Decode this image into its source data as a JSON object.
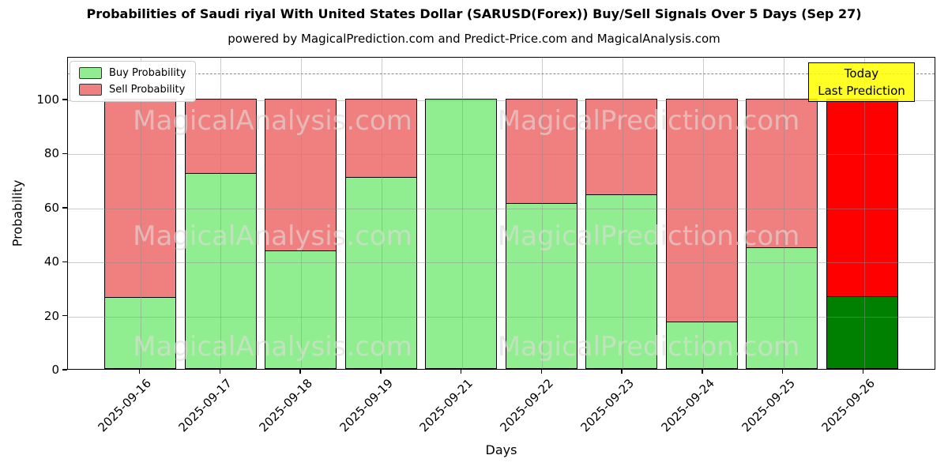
{
  "chart_data": {
    "type": "bar",
    "stacked": true,
    "title": "Probabilities of Saudi riyal With United States Dollar (SARUSD(Forex)) Buy/Sell Signals Over 5 Days (Sep 27)",
    "subtitle": "powered by MagicalPrediction.com and Predict-Price.com and MagicalAnalysis.com",
    "xlabel": "Days",
    "ylabel": "Probability",
    "ylim": [
      0,
      115.8
    ],
    "yticks": [
      0,
      20,
      40,
      60,
      80,
      100
    ],
    "grid": true,
    "dashed_threshold": 110,
    "categories": [
      "2025-09-16",
      "2025-09-17",
      "2025-09-18",
      "2025-09-19",
      "2025-09-21",
      "2025-09-22",
      "2025-09-23",
      "2025-09-24",
      "2025-09-25",
      "2025-09-26"
    ],
    "series": [
      {
        "name": "Buy Probability",
        "color": "#90EE90",
        "today_color": "#008000",
        "values": [
          26.5,
          72.5,
          44,
          71,
          100,
          61.5,
          64.5,
          17.5,
          45,
          27
        ]
      },
      {
        "name": "Sell Probability",
        "color": "#F08080",
        "today_color": "#FF0000",
        "values": [
          73.5,
          27.5,
          56,
          29,
          0,
          38.5,
          35.5,
          82.5,
          55,
          73
        ]
      }
    ],
    "legend": {
      "position": "upper left",
      "entries": [
        "Buy Probability",
        "Sell Probability"
      ]
    },
    "annotation": {
      "line1": "Today",
      "line2": "Last Prediction",
      "bg_color": "#FFFF00",
      "applies_to": "2025-09-26"
    },
    "watermarks": {
      "left_text": "MagicalAnalysis.com",
      "right_text": "MagicalPrediction.com",
      "rows": 3
    }
  },
  "colors": {
    "bar_edge": "#000000",
    "grid": "#8c8c8c",
    "dashed_line": "#8a8a8a",
    "axis": "#000000",
    "background": "#ffffff"
  }
}
